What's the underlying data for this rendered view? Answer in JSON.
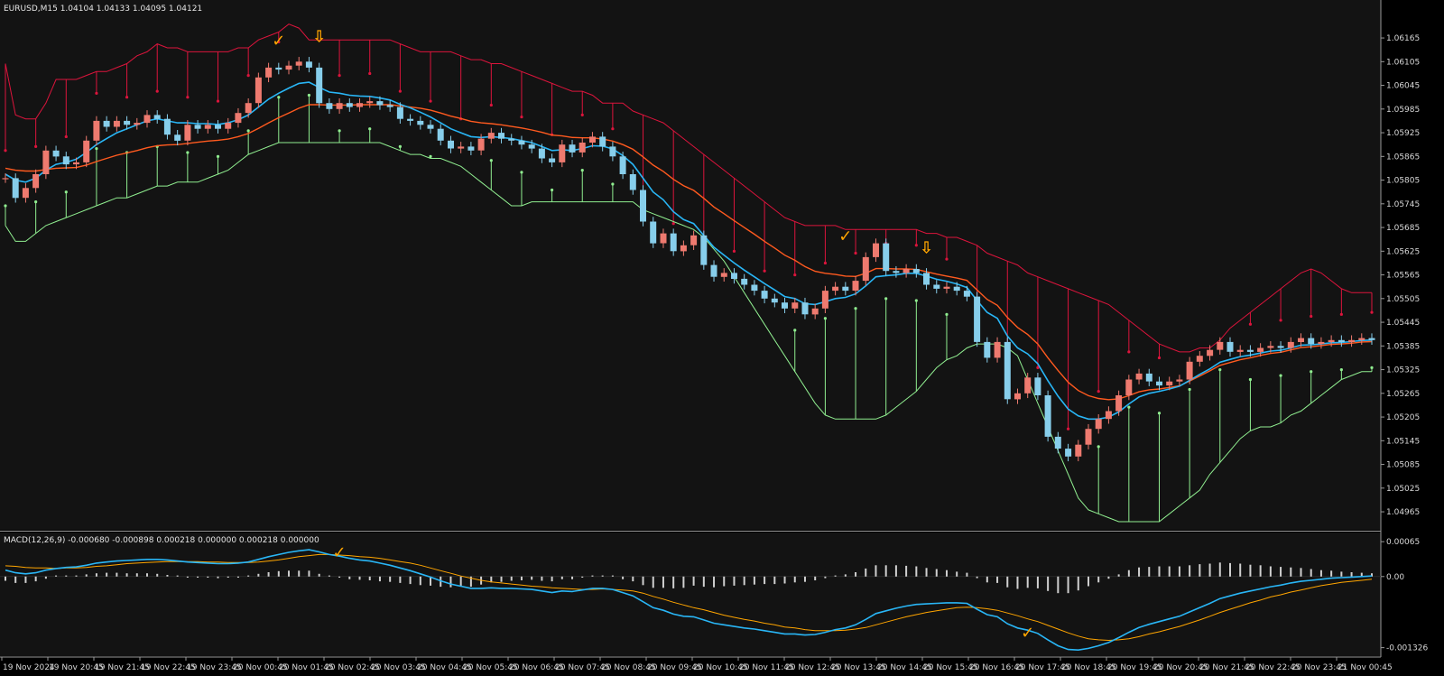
{
  "window": {
    "title": "EURUSD,M15  1.04104 1.04133 1.04095 1.04121",
    "macd_title": "MACD(12,26,9) -0.000680 -0.000898 0.000218 0.000000 0.000218 0.000000"
  },
  "colors": {
    "background": "#000000",
    "panel": "#131313",
    "bull_candle": "#ee7a6f",
    "bear_candle": "#87ceeb",
    "upper_band": "#dc143c",
    "lower_band": "#90ee90",
    "fast_ma": "#29b6f6",
    "slow_ma": "#ff5a1f",
    "signal_marker": "#ffa500",
    "histogram": "#d0d0d0",
    "axis_text": "#d8d8d8"
  },
  "markers": {
    "check_symbol": "✓",
    "arrow_symbol": "⇩"
  },
  "chart_data": [
    {
      "type": "candlestick",
      "symbol": "EURUSD",
      "timeframe": "M15",
      "y_ticks": [
        "1.06165",
        "1.06105",
        "1.06045",
        "1.05985",
        "1.05925",
        "1.05865",
        "1.05805",
        "1.05745",
        "1.05685",
        "1.05625",
        "1.05565",
        "1.05505",
        "1.05445",
        "1.05385",
        "1.05325",
        "1.05265",
        "1.05205",
        "1.05145",
        "1.05085",
        "1.05025",
        "1.04965"
      ],
      "ylim": [
        1.0494,
        1.0622
      ],
      "x_ticks": [
        "19 Nov 2024",
        "19 Nov 20:45",
        "19 Nov 21:45",
        "19 Nov 22:45",
        "19 Nov 23:45",
        "20 Nov 00:45",
        "20 Nov 01:45",
        "20 Nov 02:45",
        "20 Nov 03:45",
        "20 Nov 04:45",
        "20 Nov 05:45",
        "20 Nov 06:45",
        "20 Nov 07:45",
        "20 Nov 08:45",
        "20 Nov 09:45",
        "20 Nov 10:45",
        "20 Nov 11:45",
        "20 Nov 12:45",
        "20 Nov 13:45",
        "20 Nov 14:45",
        "20 Nov 15:45",
        "20 Nov 16:45",
        "20 Nov 17:45",
        "20 Nov 18:45",
        "20 Nov 19:45",
        "20 Nov 20:45",
        "20 Nov 21:45",
        "20 Nov 22:45",
        "20 Nov 23:45",
        "21 Nov 00:45"
      ],
      "close": [
        1.0581,
        1.0576,
        1.05785,
        1.0582,
        1.0588,
        1.05865,
        1.05845,
        1.0585,
        1.05905,
        1.05955,
        1.0594,
        1.05955,
        1.05945,
        1.0595,
        1.0597,
        1.0596,
        1.0592,
        1.05905,
        1.05945,
        1.05935,
        1.05945,
        1.05935,
        1.0595,
        1.05975,
        1.06,
        1.06065,
        1.0609,
        1.06085,
        1.06095,
        1.06105,
        1.0609,
        1.06,
        1.05985,
        1.06,
        1.0599,
        1.06,
        1.06005,
        1.05995,
        1.0599,
        1.0596,
        1.05955,
        1.05945,
        1.05935,
        1.05905,
        1.05885,
        1.0589,
        1.0588,
        1.0591,
        1.05925,
        1.0591,
        1.05905,
        1.05895,
        1.05885,
        1.0586,
        1.0585,
        1.05895,
        1.05875,
        1.059,
        1.05915,
        1.0589,
        1.05865,
        1.0582,
        1.0578,
        1.057,
        1.05645,
        1.0567,
        1.05625,
        1.0564,
        1.05665,
        1.0559,
        1.0556,
        1.0557,
        1.05555,
        1.0554,
        1.05525,
        1.05505,
        1.05495,
        1.0548,
        1.05495,
        1.05465,
        1.0548,
        1.05525,
        1.05535,
        1.05525,
        1.0555,
        1.0561,
        1.05645,
        1.05575,
        1.0557,
        1.0558,
        1.0557,
        1.0554,
        1.0553,
        1.05535,
        1.05525,
        1.0551,
        1.05395,
        1.05355,
        1.05395,
        1.0525,
        1.05265,
        1.05305,
        1.0526,
        1.05155,
        1.05125,
        1.05105,
        1.05135,
        1.05175,
        1.052,
        1.0522,
        1.0526,
        1.053,
        1.05315,
        1.05295,
        1.05285,
        1.05295,
        1.053,
        1.05345,
        1.0536,
        1.05375,
        1.05395,
        1.0537,
        1.05375,
        1.0537,
        1.0538,
        1.05385,
        1.0538,
        1.05395,
        1.05405,
        1.0539,
        1.05395,
        1.054,
        1.05395,
        1.054,
        1.05405,
        1.054
      ],
      "upper_band": [
        1.061,
        1.0597,
        1.0596,
        1.0596,
        1.06,
        1.0606,
        1.0606,
        1.0606,
        1.0607,
        1.0608,
        1.0608,
        1.0609,
        1.061,
        1.0612,
        1.0613,
        1.0615,
        1.0614,
        1.0614,
        1.0613,
        1.0613,
        1.0613,
        1.0613,
        1.0613,
        1.0614,
        1.0614,
        1.0616,
        1.0617,
        1.0618,
        1.062,
        1.0619,
        1.0616,
        1.0616,
        1.0616,
        1.0616,
        1.0616,
        1.0616,
        1.0616,
        1.0616,
        1.0616,
        1.0615,
        1.0614,
        1.0613,
        1.0613,
        1.0613,
        1.0613,
        1.0612,
        1.0611,
        1.0611,
        1.061,
        1.061,
        1.0609,
        1.0608,
        1.0607,
        1.0606,
        1.0605,
        1.0604,
        1.0603,
        1.0603,
        1.0602,
        1.06,
        1.06,
        1.06,
        1.0598,
        1.0597,
        1.0596,
        1.0595,
        1.0593,
        1.0591,
        1.0589,
        1.0587,
        1.0585,
        1.0583,
        1.0581,
        1.0579,
        1.0577,
        1.0575,
        1.0573,
        1.0571,
        1.057,
        1.0569,
        1.0569,
        1.0569,
        1.0569,
        1.0568,
        1.0568,
        1.0568,
        1.0568,
        1.0568,
        1.0568,
        1.0568,
        1.0568,
        1.0567,
        1.0567,
        1.0566,
        1.0566,
        1.0565,
        1.0564,
        1.0562,
        1.0561,
        1.056,
        1.0559,
        1.0557,
        1.0556,
        1.0555,
        1.0554,
        1.0553,
        1.0552,
        1.0551,
        1.055,
        1.0549,
        1.0547,
        1.0545,
        1.0543,
        1.0541,
        1.0539,
        1.0538,
        1.0537,
        1.0537,
        1.0538,
        1.0538,
        1.054,
        1.0543,
        1.0545,
        1.0547,
        1.0549,
        1.0551,
        1.0553,
        1.0555,
        1.0557,
        1.0558,
        1.0557,
        1.0555,
        1.0553,
        1.0552,
        1.0552,
        1.0552
      ],
      "lower_band": [
        1.0569,
        1.0565,
        1.0565,
        1.0567,
        1.0569,
        1.057,
        1.0571,
        1.0572,
        1.0573,
        1.0574,
        1.0575,
        1.0576,
        1.0576,
        1.0577,
        1.0578,
        1.0579,
        1.0579,
        1.058,
        1.058,
        1.058,
        1.0581,
        1.0582,
        1.0583,
        1.0585,
        1.0587,
        1.0588,
        1.0589,
        1.059,
        1.059,
        1.059,
        1.059,
        1.059,
        1.059,
        1.059,
        1.059,
        1.059,
        1.059,
        1.059,
        1.0589,
        1.0588,
        1.0587,
        1.0587,
        1.0586,
        1.0586,
        1.0585,
        1.0584,
        1.0582,
        1.058,
        1.0578,
        1.0576,
        1.0574,
        1.0574,
        1.0575,
        1.0575,
        1.0575,
        1.0575,
        1.0575,
        1.0575,
        1.0575,
        1.0575,
        1.0575,
        1.0575,
        1.0575,
        1.0573,
        1.0572,
        1.0571,
        1.057,
        1.0569,
        1.0568,
        1.0566,
        1.0563,
        1.056,
        1.0556,
        1.0552,
        1.0548,
        1.0544,
        1.054,
        1.0536,
        1.0532,
        1.0528,
        1.0524,
        1.0521,
        1.052,
        1.052,
        1.052,
        1.052,
        1.052,
        1.0521,
        1.0523,
        1.0525,
        1.0527,
        1.053,
        1.0533,
        1.0535,
        1.0536,
        1.0538,
        1.0539,
        1.0539,
        1.0539,
        1.0538,
        1.0536,
        1.053,
        1.0524,
        1.0518,
        1.0512,
        1.0506,
        1.05,
        1.0497,
        1.0496,
        1.0495,
        1.0494,
        1.0494,
        1.0494,
        1.0494,
        1.0494,
        1.0496,
        1.0498,
        1.05,
        1.0502,
        1.0506,
        1.0509,
        1.0512,
        1.0515,
        1.0517,
        1.0518,
        1.0518,
        1.0519,
        1.0521,
        1.0522,
        1.0524,
        1.0526,
        1.0528,
        1.053,
        1.0531,
        1.0532,
        1.0532
      ],
      "fast_ma": [
        1.0582,
        1.05805,
        1.058,
        1.0581,
        1.0583,
        1.05845,
        1.0585,
        1.05858,
        1.05875,
        1.05895,
        1.0591,
        1.05925,
        1.05935,
        1.05945,
        1.05955,
        1.0596,
        1.05955,
        1.0595,
        1.0595,
        1.05948,
        1.05948,
        1.05946,
        1.0595,
        1.05958,
        1.0597,
        1.0599,
        1.0601,
        1.06025,
        1.06038,
        1.0605,
        1.06053,
        1.0604,
        1.06028,
        1.06025,
        1.0602,
        1.06018,
        1.06017,
        1.06013,
        1.06008,
        1.05997,
        1.05988,
        1.05977,
        1.05965,
        1.0595,
        1.05935,
        1.05925,
        1.05915,
        1.05913,
        1.05915,
        1.05913,
        1.0591,
        1.05905,
        1.059,
        1.0589,
        1.0588,
        1.05882,
        1.0588,
        1.05885,
        1.05892,
        1.05891,
        1.05884,
        1.05867,
        1.05845,
        1.0581,
        1.05775,
        1.05755,
        1.05725,
        1.05705,
        1.05695,
        1.05665,
        1.05635,
        1.05615,
        1.05595,
        1.05577,
        1.0556,
        1.05543,
        1.05527,
        1.0551,
        1.05505,
        1.05492,
        1.0549,
        1.05497,
        1.05505,
        1.05508,
        1.05517,
        1.05537,
        1.0556,
        1.05563,
        1.05565,
        1.05569,
        1.05569,
        1.05562,
        1.05554,
        1.05549,
        1.05542,
        1.05533,
        1.055,
        1.0547,
        1.05455,
        1.0541,
        1.0538,
        1.05365,
        1.0534,
        1.05297,
        1.05258,
        1.05225,
        1.05208,
        1.052,
        1.052,
        1.05205,
        1.05218,
        1.05238,
        1.05256,
        1.05265,
        1.0527,
        1.05276,
        1.05283,
        1.05298,
        1.05313,
        1.05327,
        1.05344,
        1.05351,
        1.05358,
        1.05362,
        1.05367,
        1.05372,
        1.05374,
        1.0538,
        1.05387,
        1.05388,
        1.0539,
        1.05393,
        1.05394,
        1.05396,
        1.05399,
        1.054
      ],
      "slow_ma": [
        1.05835,
        1.0583,
        1.05828,
        1.05828,
        1.05832,
        1.05835,
        1.05836,
        1.05837,
        1.05843,
        1.05852,
        1.0586,
        1.05868,
        1.05874,
        1.0588,
        1.05887,
        1.05892,
        1.05894,
        1.05895,
        1.05898,
        1.05901,
        1.05904,
        1.05906,
        1.05909,
        1.05915,
        1.05923,
        1.05936,
        1.0595,
        1.05963,
        1.05975,
        1.05987,
        1.05996,
        1.05996,
        1.05995,
        1.05995,
        1.05995,
        1.05996,
        1.05996,
        1.05996,
        1.05996,
        1.05993,
        1.0599,
        1.05987,
        1.05982,
        1.05975,
        1.05967,
        1.05961,
        1.05954,
        1.0595,
        1.05948,
        1.05945,
        1.05941,
        1.05937,
        1.05932,
        1.05926,
        1.05919,
        1.05917,
        1.05913,
        1.05912,
        1.05912,
        1.05909,
        1.05904,
        1.05895,
        1.05883,
        1.05864,
        1.05843,
        1.05827,
        1.05807,
        1.05791,
        1.05779,
        1.05759,
        1.05737,
        1.0572,
        1.05702,
        1.05685,
        1.05668,
        1.0565,
        1.05633,
        1.05615,
        1.05602,
        1.05586,
        1.05574,
        1.05569,
        1.05566,
        1.05562,
        1.05561,
        1.05569,
        1.05581,
        1.05581,
        1.0558,
        1.0558,
        1.05579,
        1.05573,
        1.05567,
        1.05562,
        1.05557,
        1.05551,
        1.05527,
        1.05503,
        1.05488,
        1.05457,
        1.05432,
        1.05414,
        1.0539,
        1.05355,
        1.05323,
        1.05293,
        1.05272,
        1.05259,
        1.05252,
        1.05249,
        1.05251,
        1.05259,
        1.05269,
        1.05274,
        1.05276,
        1.0528,
        1.05284,
        1.05296,
        1.05309,
        1.05322,
        1.05336,
        1.05343,
        1.0535,
        1.05355,
        1.05361,
        1.05366,
        1.05369,
        1.05375,
        1.05381,
        1.05383,
        1.05386,
        1.05389,
        1.0539,
        1.05392,
        1.05395,
        1.05396
      ],
      "signals": [
        {
          "symbol": "check",
          "bar": 27,
          "price": 1.06145
        },
        {
          "symbol": "arrow",
          "bar": 31,
          "price": 1.06155
        },
        {
          "symbol": "check",
          "bar": 83,
          "price": 1.0565
        },
        {
          "symbol": "arrow",
          "bar": 91,
          "price": 1.0562
        }
      ]
    },
    {
      "type": "histogram",
      "title": "MACD(12,26,9) -0.000680 -0.000898 0.000218 0.000000 0.000218 0.000000",
      "y_ticks": [
        "0.00065",
        "0.00",
        "-0.001326"
      ],
      "ylim": [
        -0.0014,
        0.00072
      ],
      "macd": [
        0.00012,
        7e-05,
        5e-05,
        7e-05,
        0.00012,
        0.00015,
        0.00017,
        0.00018,
        0.00021,
        0.00025,
        0.00027,
        0.00029,
        0.0003,
        0.00031,
        0.00032,
        0.00032,
        0.00031,
        0.00029,
        0.00027,
        0.00026,
        0.00025,
        0.00024,
        0.00024,
        0.00025,
        0.00027,
        0.00032,
        0.00037,
        0.00041,
        0.00045,
        0.00048,
        0.0005,
        0.00046,
        0.00041,
        0.00038,
        0.00034,
        0.00031,
        0.00029,
        0.00025,
        0.00021,
        0.00016,
        0.00011,
        5e-05,
        -1e-05,
        -8e-05,
        -0.00014,
        -0.00018,
        -0.00022,
        -0.00022,
        -0.00021,
        -0.00022,
        -0.00022,
        -0.00023,
        -0.00024,
        -0.00027,
        -0.0003,
        -0.00027,
        -0.00028,
        -0.00025,
        -0.00022,
        -0.00022,
        -0.00024,
        -0.0003,
        -0.00036,
        -0.00047,
        -0.00058,
        -0.00063,
        -0.0007,
        -0.00074,
        -0.00075,
        -0.00081,
        -0.00087,
        -0.0009,
        -0.00093,
        -0.00096,
        -0.00098,
        -0.00101,
        -0.00104,
        -0.00107,
        -0.00107,
        -0.00109,
        -0.00108,
        -0.00104,
        -0.00099,
        -0.00096,
        -0.0009,
        -0.0008,
        -0.00069,
        -0.00064,
        -0.00059,
        -0.00055,
        -0.00052,
        -0.00051,
        -0.0005,
        -0.00049,
        -0.00049,
        -0.0005,
        -0.00061,
        -0.00071,
        -0.00075,
        -0.00088,
        -0.00096,
        -0.001,
        -0.00106,
        -0.00118,
        -0.00129,
        -0.00136,
        -0.00137,
        -0.00134,
        -0.00129,
        -0.00123,
        -0.00114,
        -0.00104,
        -0.00095,
        -0.00089,
        -0.00084,
        -0.00079,
        -0.00074,
        -0.00066,
        -0.00058,
        -0.0005,
        -0.00041,
        -0.00036,
        -0.00031,
        -0.00027,
        -0.00023,
        -0.00019,
        -0.00016,
        -0.00012,
        -9e-05,
        -7e-05,
        -5e-05,
        -3e-05,
        -2e-05,
        -1e-05,
        0.0,
        1e-05
      ],
      "signal": [
        0.0002,
        0.00019,
        0.00017,
        0.00016,
        0.00016,
        0.00015,
        0.00016,
        0.00016,
        0.00017,
        0.00019,
        0.0002,
        0.00022,
        0.00024,
        0.00025,
        0.00026,
        0.00027,
        0.00028,
        0.00028,
        0.00028,
        0.00028,
        0.00027,
        0.00027,
        0.00026,
        0.00026,
        0.00026,
        0.00027,
        0.00029,
        0.00031,
        0.00034,
        0.00037,
        0.00039,
        0.00041,
        0.00041,
        0.0004,
        0.00039,
        0.00037,
        0.00036,
        0.00034,
        0.00031,
        0.00028,
        0.00025,
        0.00021,
        0.00016,
        0.00011,
        6e-05,
        1e-05,
        -3e-05,
        -7e-05,
        -0.0001,
        -0.00012,
        -0.00014,
        -0.00016,
        -0.00018,
        -0.00019,
        -0.00021,
        -0.00022,
        -0.00023,
        -0.00024,
        -0.00024,
        -0.00023,
        -0.00024,
        -0.00025,
        -0.00027,
        -0.00031,
        -0.00037,
        -0.00042,
        -0.00048,
        -0.00053,
        -0.00058,
        -0.00062,
        -0.00067,
        -0.00072,
        -0.00076,
        -0.0008,
        -0.00083,
        -0.00087,
        -0.0009,
        -0.00094,
        -0.00096,
        -0.00099,
        -0.00101,
        -0.00101,
        -0.00101,
        -0.001,
        -0.00098,
        -0.00095,
        -0.0009,
        -0.00085,
        -0.0008,
        -0.00075,
        -0.00071,
        -0.00067,
        -0.00064,
        -0.00061,
        -0.00058,
        -0.00057,
        -0.00058,
        -0.0006,
        -0.00063,
        -0.00068,
        -0.00073,
        -0.00079,
        -0.00084,
        -0.00091,
        -0.00098,
        -0.00105,
        -0.00111,
        -0.00116,
        -0.00118,
        -0.00119,
        -0.00118,
        -0.00116,
        -0.00112,
        -0.00107,
        -0.00103,
        -0.00098,
        -0.00093,
        -0.00087,
        -0.00081,
        -0.00074,
        -0.00067,
        -0.00061,
        -0.00055,
        -0.00049,
        -0.00044,
        -0.00038,
        -0.00034,
        -0.00029,
        -0.00025,
        -0.00021,
        -0.00017,
        -0.00014,
        -0.00011,
        -9e-05,
        -7e-05,
        -5e-05
      ],
      "signals": [
        {
          "symbol": "check",
          "bar": 33,
          "value": 0.00045
        },
        {
          "symbol": "check",
          "bar": 101,
          "value": -0.00105
        }
      ]
    }
  ]
}
